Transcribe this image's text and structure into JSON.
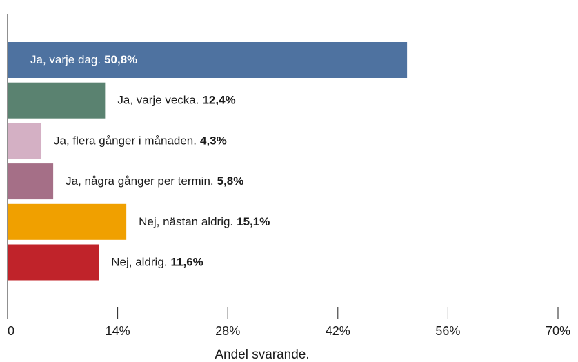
{
  "chart_data": {
    "type": "bar",
    "orientation": "horizontal",
    "x_label": "Andel svarande.",
    "categories": [
      "Ja, varje dag.",
      "Ja, varje vecka.",
      "Ja, flera gånger i månaden.",
      "Ja, några gånger per termin.",
      "Nej, nästan aldrig.",
      "Nej, aldrig."
    ],
    "values": [
      50.8,
      12.4,
      4.3,
      5.8,
      15.1,
      11.6
    ],
    "value_labels": [
      "50,8%",
      "12,4%",
      "4,3%",
      "5,8%",
      "15,1%",
      "11,6%"
    ],
    "colors": [
      "#4e72a0",
      "#5a8270",
      "#d4b0c4",
      "#a56f87",
      "#f0a000",
      "#c0232a"
    ],
    "xlim": [
      0,
      70
    ],
    "xticks": [
      0,
      {
        "value": 14,
        "label": "14%"
      },
      {
        "value": 28,
        "label": "28%"
      },
      {
        "value": 42,
        "label": "42%"
      },
      {
        "value": 56,
        "label": "56%"
      },
      {
        "value": 70,
        "label": "70%"
      }
    ],
    "grid": false
  }
}
